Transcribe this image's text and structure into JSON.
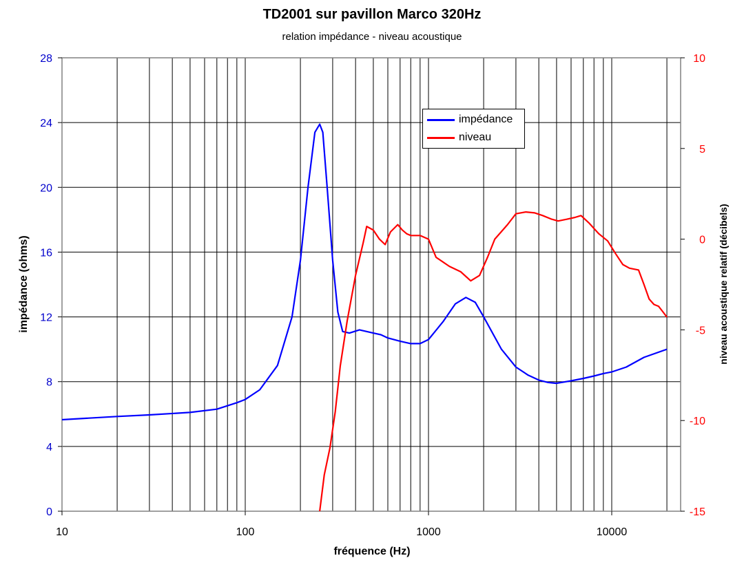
{
  "chart_data": {
    "type": "line",
    "title": "TD2001 sur pavillon Marco 320Hz",
    "subtitle": "relation impédance - niveau acoustique",
    "xlabel": "fréquence   (Hz)",
    "ylabel_left": "impédance  (ohms)",
    "ylabel_right": "niveau acoustique relatif (décibels)",
    "x_scale": "log",
    "xlim": [
      10,
      20000
    ],
    "x_ticks": [
      10,
      100,
      1000,
      10000
    ],
    "x_tick_labels": [
      "10",
      "100",
      "1000",
      "10000"
    ],
    "ylim_left": [
      0,
      28
    ],
    "y_ticks_left": [
      0,
      4,
      8,
      12,
      16,
      20,
      24,
      28
    ],
    "y_tick_labels_left": [
      "0",
      "4",
      "8",
      "12",
      "16",
      "20",
      "24",
      "28"
    ],
    "ylim_right": [
      -15,
      10
    ],
    "y_ticks_right": [
      -15,
      -10,
      -5,
      0,
      5,
      10
    ],
    "y_tick_labels_right": [
      "-15",
      "-10",
      "-5",
      "0",
      "5",
      "10"
    ],
    "grid": true,
    "legend_position": "top-center",
    "series": [
      {
        "name": "impédance",
        "axis": "left",
        "color": "#0000ff",
        "points": [
          [
            10,
            5.65
          ],
          [
            20,
            5.85
          ],
          [
            30,
            5.95
          ],
          [
            50,
            6.1
          ],
          [
            70,
            6.3
          ],
          [
            90,
            6.7
          ],
          [
            100,
            6.9
          ],
          [
            120,
            7.5
          ],
          [
            150,
            9.0
          ],
          [
            180,
            12.0
          ],
          [
            200,
            15.5
          ],
          [
            220,
            20.0
          ],
          [
            240,
            23.4
          ],
          [
            255,
            23.9
          ],
          [
            265,
            23.4
          ],
          [
            280,
            20.0
          ],
          [
            300,
            15.5
          ],
          [
            320,
            12.3
          ],
          [
            340,
            11.1
          ],
          [
            370,
            11.0
          ],
          [
            420,
            11.2
          ],
          [
            500,
            11.0
          ],
          [
            550,
            10.9
          ],
          [
            600,
            10.7
          ],
          [
            700,
            10.5
          ],
          [
            800,
            10.35
          ],
          [
            900,
            10.35
          ],
          [
            1000,
            10.6
          ],
          [
            1200,
            11.7
          ],
          [
            1400,
            12.8
          ],
          [
            1600,
            13.2
          ],
          [
            1800,
            12.9
          ],
          [
            2000,
            12.0
          ],
          [
            2500,
            10.0
          ],
          [
            3000,
            8.9
          ],
          [
            3500,
            8.4
          ],
          [
            4000,
            8.1
          ],
          [
            4500,
            7.95
          ],
          [
            5000,
            7.9
          ],
          [
            6000,
            8.05
          ],
          [
            7000,
            8.2
          ],
          [
            8000,
            8.35
          ],
          [
            9000,
            8.5
          ],
          [
            10000,
            8.6
          ],
          [
            12000,
            8.9
          ],
          [
            15000,
            9.5
          ],
          [
            20000,
            10.0
          ]
        ]
      },
      {
        "name": "niveau",
        "axis": "right",
        "color": "#ff0000",
        "points": [
          [
            255,
            -15.0
          ],
          [
            270,
            -13.0
          ],
          [
            290,
            -11.5
          ],
          [
            310,
            -9.5
          ],
          [
            330,
            -7.0
          ],
          [
            360,
            -4.5
          ],
          [
            400,
            -2.0
          ],
          [
            440,
            -0.2
          ],
          [
            460,
            0.7
          ],
          [
            500,
            0.5
          ],
          [
            540,
            0.0
          ],
          [
            580,
            -0.3
          ],
          [
            620,
            0.4
          ],
          [
            680,
            0.8
          ],
          [
            720,
            0.5
          ],
          [
            760,
            0.3
          ],
          [
            800,
            0.2
          ],
          [
            900,
            0.2
          ],
          [
            1000,
            0.0
          ],
          [
            1100,
            -1.0
          ],
          [
            1300,
            -1.5
          ],
          [
            1500,
            -1.8
          ],
          [
            1700,
            -2.3
          ],
          [
            1900,
            -2.0
          ],
          [
            2100,
            -1.0
          ],
          [
            2300,
            0.0
          ],
          [
            2700,
            0.8
          ],
          [
            3000,
            1.4
          ],
          [
            3400,
            1.5
          ],
          [
            3800,
            1.45
          ],
          [
            4200,
            1.3
          ],
          [
            4700,
            1.1
          ],
          [
            5100,
            1.0
          ],
          [
            5700,
            1.1
          ],
          [
            6300,
            1.2
          ],
          [
            6800,
            1.3
          ],
          [
            7500,
            0.9
          ],
          [
            8500,
            0.3
          ],
          [
            9500,
            -0.1
          ],
          [
            10500,
            -0.8
          ],
          [
            11500,
            -1.4
          ],
          [
            12500,
            -1.6
          ],
          [
            14000,
            -1.7
          ],
          [
            15000,
            -2.5
          ],
          [
            16000,
            -3.3
          ],
          [
            17000,
            -3.6
          ],
          [
            18000,
            -3.7
          ],
          [
            19000,
            -4.0
          ],
          [
            20000,
            -4.3
          ]
        ]
      }
    ]
  }
}
